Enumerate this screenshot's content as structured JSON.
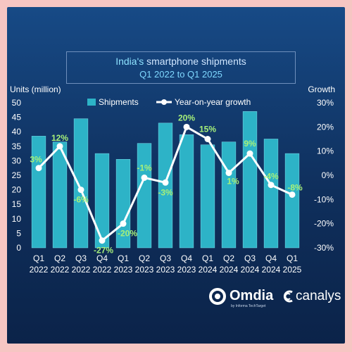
{
  "title": {
    "line1_highlight": "India's",
    "line1_rest": " smartphone shipments",
    "line2": "Q1 2022 to Q1 2025"
  },
  "logos": {
    "omdia": "Omdia",
    "omdia_sub": "by Informa TechTarget",
    "canalys": "canalys"
  },
  "colors": {
    "bar": "#2db3c7",
    "line": "#ffffff",
    "label": "#a6f07a",
    "axis_text": "#ffffff"
  },
  "chart_data": {
    "type": "bar",
    "categories": [
      [
        "Q1",
        "2022"
      ],
      [
        "Q2",
        "2022"
      ],
      [
        "Q3",
        "2022"
      ],
      [
        "Q4",
        "2022"
      ],
      [
        "Q1",
        "2023"
      ],
      [
        "Q2",
        "2023"
      ],
      [
        "Q3",
        "2023"
      ],
      [
        "Q4",
        "2023"
      ],
      [
        "Q1",
        "2024"
      ],
      [
        "Q2",
        "2024"
      ],
      [
        "Q3",
        "2024"
      ],
      [
        "Q4",
        "2024"
      ],
      [
        "Q1",
        "2025"
      ]
    ],
    "ylabel_left": "Units (million)",
    "ylabel_right": "Growth",
    "ylim_left": [
      0,
      50
    ],
    "yticks_left": [
      "0",
      "5",
      "10",
      "15",
      "20",
      "25",
      "30",
      "35",
      "40",
      "45",
      "50"
    ],
    "ylim_right": [
      -30,
      30
    ],
    "yticks_right": [
      "-30%",
      "-20%",
      "-10%",
      "0%",
      "10%",
      "20%",
      "30%"
    ],
    "legend_position": "top",
    "series": [
      {
        "name": "Shipments",
        "type": "bar",
        "axis": "left",
        "values": [
          38.5,
          36.5,
          44.5,
          32.5,
          30.5,
          36,
          43,
          39,
          35.5,
          36.5,
          47,
          37.5,
          32.5
        ]
      },
      {
        "name": "Year-on-year growth",
        "type": "line",
        "axis": "right",
        "values": [
          3,
          12,
          -6,
          -27,
          -20,
          -1,
          -3,
          20,
          15,
          1,
          9,
          -4,
          -8
        ],
        "labels": [
          "3%",
          "12%",
          "-6%",
          "-27%",
          "-20%",
          "-1%",
          "-3%",
          "20%",
          "15%",
          "1%",
          "9%",
          "-4%",
          "-8%"
        ]
      }
    ]
  }
}
